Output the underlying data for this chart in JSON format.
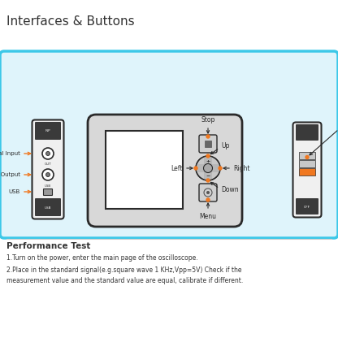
{
  "title": "Interfaces & Buttons",
  "background_color": "#ffffff",
  "panel_bg": "#dff4fb",
  "panel_border": "#3cc8e8",
  "orange": "#f07820",
  "dark": "#2a2a2a",
  "gray_body": "#e8e8e8",
  "dark_block": "#3a3a3a",
  "text_color": "#333333",
  "performance_title": "Performance Test",
  "perf_lines": [
    "1.Turn on the power, enter the main page of the oscilloscope.",
    "2.Place in the standard signal(e.g.square wave 1 KHz,Vpp=5V) Check if the",
    "measurement value and the standard value are equal, calibrate if different."
  ]
}
